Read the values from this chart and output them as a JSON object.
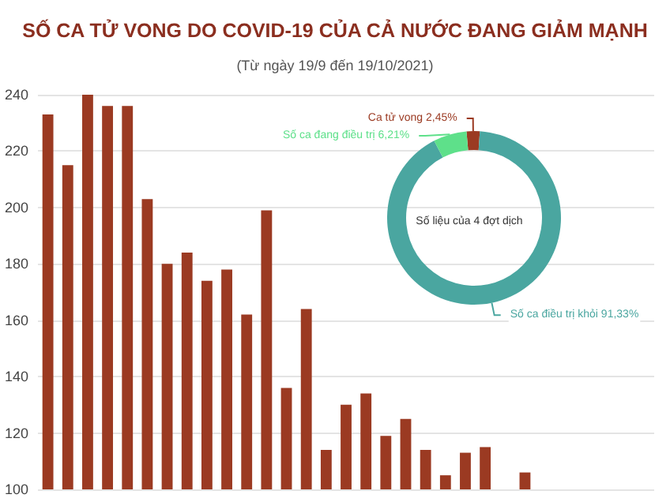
{
  "chart_data": [
    {
      "type": "bar",
      "title": "SỐ CA TỬ VONG DO COVID-19 CỦA CẢ NƯỚC ĐANG GIẢM MẠNH",
      "subtitle": "(Từ ngày 19/9 đến 19/10/2021)",
      "categories": [
        null,
        null,
        null,
        null,
        null,
        null,
        null,
        null,
        null,
        null,
        null,
        null,
        null,
        null,
        null,
        null,
        null,
        null,
        null,
        null,
        null,
        null,
        null,
        null,
        null,
        null,
        null,
        null,
        null,
        null,
        null
      ],
      "values": [
        233,
        215,
        240,
        236,
        236,
        203,
        180,
        184,
        174,
        178,
        162,
        199,
        136,
        164,
        114,
        130,
        134,
        119,
        125,
        114,
        105,
        113,
        115,
        null,
        106,
        null,
        null,
        null,
        null,
        null,
        null
      ],
      "color": "#9b3a22",
      "ylim": [
        100,
        240
      ],
      "yticks": [
        100,
        120,
        140,
        160,
        180,
        200,
        220,
        240
      ],
      "grid": "y"
    },
    {
      "type": "donut",
      "categories": [
        "Ca tử vong",
        "Số ca điều trị khỏi",
        "Số ca đang điều trị"
      ],
      "values": [
        2.45,
        91.33,
        6.21
      ],
      "value_labels": [
        "2,45%",
        "91,33%",
        "6,21%"
      ],
      "colors": [
        "#9b3a22",
        "#4aa6a0",
        "#5ee08a"
      ],
      "annotations": [
        "Số liệu của 4 đợt dịch"
      ]
    }
  ]
}
